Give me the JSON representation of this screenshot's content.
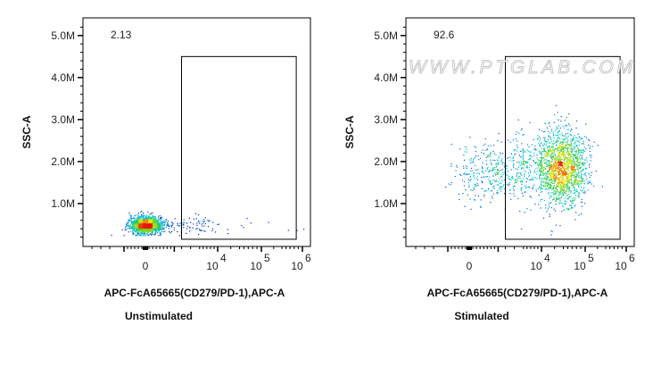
{
  "chart_data": [
    {
      "type": "scatter",
      "subtitle": "Unstimulated",
      "xlabel": "APC-FcA65665(CD279/PD-1),APC-A",
      "ylabel": "SSC-A",
      "gate_percent": "2.13",
      "y_ticks": [
        "1.0M",
        "2.0M",
        "3.0M",
        "4.0M",
        "5.0M"
      ],
      "x_ticks": [
        {
          "base": "0",
          "exp": ""
        },
        {
          "base": "10",
          "exp": "4"
        },
        {
          "base": "10",
          "exp": "5"
        },
        {
          "base": "10",
          "exp": "6"
        }
      ],
      "ylim": [
        0,
        5.4
      ],
      "gate": {
        "x": [
          2.0,
          5.85
        ],
        "y": [
          0.15,
          4.5
        ]
      },
      "clusters": [
        {
          "x": 0.0,
          "y": 0.5,
          "sx": 0.45,
          "sy": 0.1,
          "n": 1500
        },
        {
          "x": 2.5,
          "y": 0.5,
          "sx": 1.2,
          "sy": 0.1,
          "n": 120
        }
      ]
    },
    {
      "type": "scatter",
      "subtitle": "Stimulated",
      "xlabel": "APC-FcA65665(CD279/PD-1),APC-A",
      "ylabel": "SSC-A",
      "gate_percent": "92.6",
      "watermark": "WWW.PTGLAB.COM",
      "y_ticks": [
        "1.0M",
        "2.0M",
        "3.0M",
        "4.0M",
        "5.0M"
      ],
      "x_ticks": [
        {
          "base": "0",
          "exp": ""
        },
        {
          "base": "10",
          "exp": "4"
        },
        {
          "base": "10",
          "exp": "5"
        },
        {
          "base": "10",
          "exp": "6"
        }
      ],
      "ylim": [
        0,
        5.4
      ],
      "gate": {
        "x": [
          2.0,
          5.85
        ],
        "y": [
          0.15,
          4.5
        ]
      },
      "clusters": [
        {
          "x": 4.45,
          "y": 1.85,
          "sx": 0.28,
          "sy": 0.45,
          "n": 1600
        },
        {
          "x": 1.1,
          "y": 1.75,
          "sx": 1.0,
          "sy": 0.35,
          "n": 350
        },
        {
          "x": 3.2,
          "y": 1.9,
          "sx": 0.6,
          "sy": 0.4,
          "n": 200
        }
      ]
    }
  ]
}
